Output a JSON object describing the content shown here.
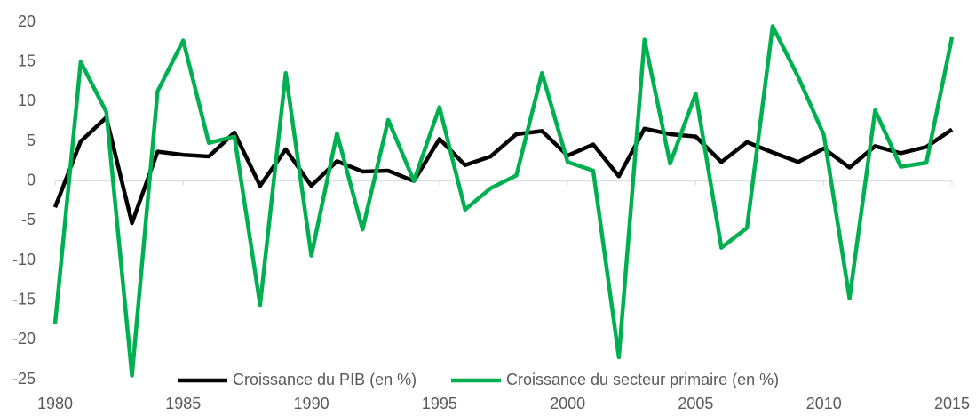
{
  "chart_data": {
    "type": "line",
    "x": [
      1980,
      1981,
      1982,
      1983,
      1984,
      1985,
      1986,
      1987,
      1988,
      1989,
      1990,
      1991,
      1992,
      1993,
      1994,
      1995,
      1996,
      1997,
      1998,
      1999,
      2000,
      2001,
      2002,
      2003,
      2004,
      2005,
      2006,
      2007,
      2008,
      2009,
      2010,
      2011,
      2012,
      2013,
      2014,
      2015
    ],
    "series": [
      {
        "name": "Croissance du PIB (en %)",
        "color": "#000000",
        "values": [
          -3.3,
          5,
          8,
          -5.3,
          3.7,
          3.3,
          3.1,
          6.1,
          -0.6,
          4.0,
          -0.6,
          2.5,
          1.2,
          1.3,
          0,
          5.3,
          2.0,
          3.1,
          5.9,
          6.3,
          3.2,
          4.6,
          0.6,
          6.6,
          5.9,
          5.6,
          2.4,
          4.9,
          3.6,
          2.4,
          4.1,
          1.7,
          4.4,
          3.5,
          4.3,
          6.5
        ]
      },
      {
        "name": "Croissance du secteur primaire (en %)",
        "color": "#00b050",
        "values": [
          -18,
          15,
          8.7,
          -24.5,
          11.3,
          17.7,
          4.8,
          5.6,
          -15.6,
          13.6,
          -9.4,
          6.0,
          -6.1,
          7.7,
          0,
          9.3,
          -3.6,
          -0.9,
          0.7,
          13.6,
          2.4,
          1.3,
          -22.2,
          17.8,
          2.2,
          11.0,
          -8.4,
          -5.9,
          19.5,
          13.1,
          5.8,
          -14.8,
          8.9,
          1.8,
          2.3,
          18.1
        ]
      }
    ],
    "xlim": [
      1980,
      2015
    ],
    "xticks": [
      1980,
      1985,
      1990,
      1995,
      2000,
      2005,
      2010,
      2015
    ],
    "ylim": [
      -25,
      20
    ],
    "yticks": [
      -25,
      -20,
      -15,
      -10,
      -5,
      0,
      5,
      10,
      15,
      20
    ],
    "grid": false,
    "legend": "bottom"
  }
}
